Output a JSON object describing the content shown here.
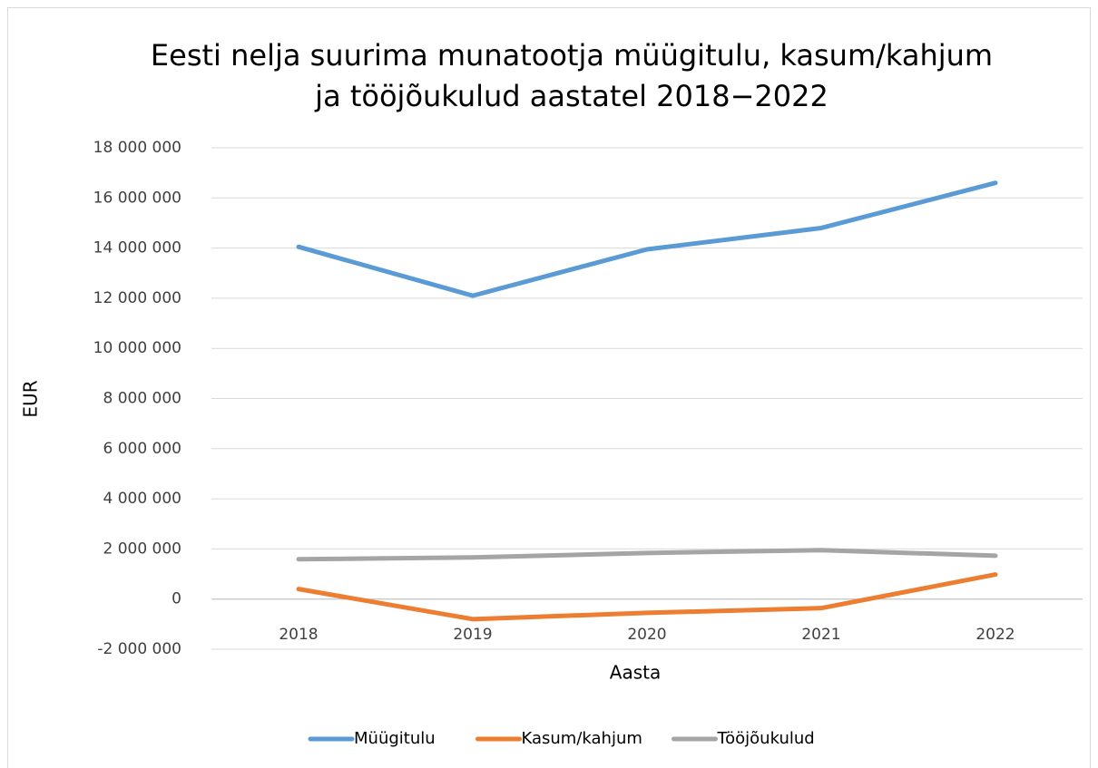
{
  "chart_data": {
    "type": "line",
    "title": [
      "Eesti nelja suurima munatootja müügitulu, kasum/kahjum",
      "ja tööjõukulud aastatel 2018−2022"
    ],
    "x_label": "Aasta",
    "y_label": "EUR",
    "categories": [
      "2018",
      "2019",
      "2020",
      "2021",
      "2022"
    ],
    "series": [
      {
        "name": "Müügitulu",
        "color": "#5b9bd5",
        "values": [
          14050000,
          12100000,
          13950000,
          14800000,
          16600000
        ]
      },
      {
        "name": "Kasum/kahjum",
        "color": "#ed7d31",
        "values": [
          400000,
          -800000,
          -550000,
          -360000,
          980000
        ]
      },
      {
        "name": "Tööjõukulud",
        "color": "#a5a5a5",
        "values": [
          1590000,
          1660000,
          1840000,
          1950000,
          1730000
        ]
      }
    ],
    "ylim": [
      -2000000,
      18000000
    ],
    "yticks": [
      {
        "value": -2000000,
        "label": "-2 000 000"
      },
      0,
      {
        "value": 2000000,
        "label": "2 000 000"
      },
      {
        "value": 4000000,
        "label": "4 000 000"
      },
      {
        "value": 6000000,
        "label": "6 000 000"
      },
      {
        "value": 8000000,
        "label": "8 000 000"
      },
      {
        "value": 10000000,
        "label": "10 000 000"
      },
      {
        "value": 12000000,
        "label": "12 000 000"
      },
      {
        "value": 14000000,
        "label": "14 000 000"
      },
      {
        "value": 16000000,
        "label": "16 000 000"
      },
      {
        "value": 18000000,
        "label": "18 000 000"
      }
    ],
    "grid": true,
    "legend": "bottom"
  }
}
